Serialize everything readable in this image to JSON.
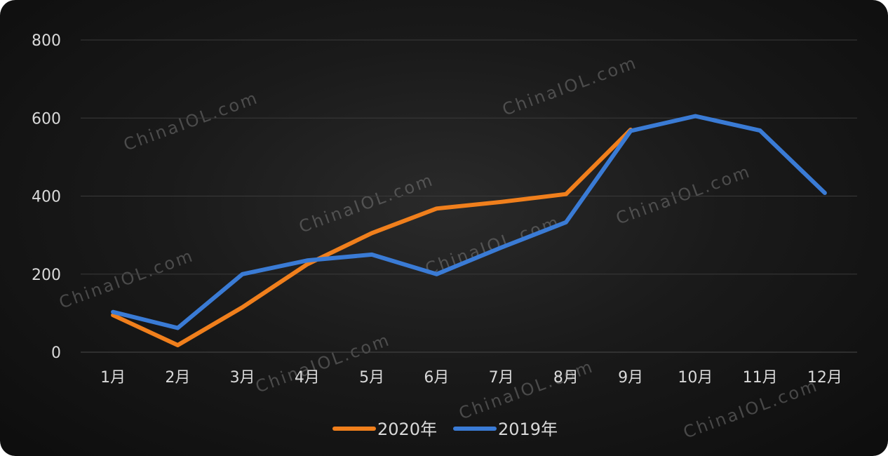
{
  "chart_data": {
    "type": "line",
    "categories": [
      "1月",
      "2月",
      "3月",
      "4月",
      "5月",
      "6月",
      "7月",
      "8月",
      "9月",
      "10月",
      "11月",
      "12月"
    ],
    "series": [
      {
        "name": "2020年",
        "color": "#f07f1c",
        "values": [
          95,
          18,
          115,
          225,
          305,
          368,
          385,
          405,
          570,
          null,
          null,
          null
        ]
      },
      {
        "name": "2019年",
        "color": "#3a7bd5",
        "values": [
          103,
          62,
          200,
          235,
          250,
          200,
          268,
          333,
          567,
          605,
          568,
          408
        ]
      }
    ],
    "ylim": [
      0,
      800
    ],
    "yticks": [
      "0",
      "200",
      "400",
      "600",
      "800"
    ],
    "grid": true,
    "legend_position": "bottom-center",
    "watermark": "ChinaIOL.com"
  }
}
